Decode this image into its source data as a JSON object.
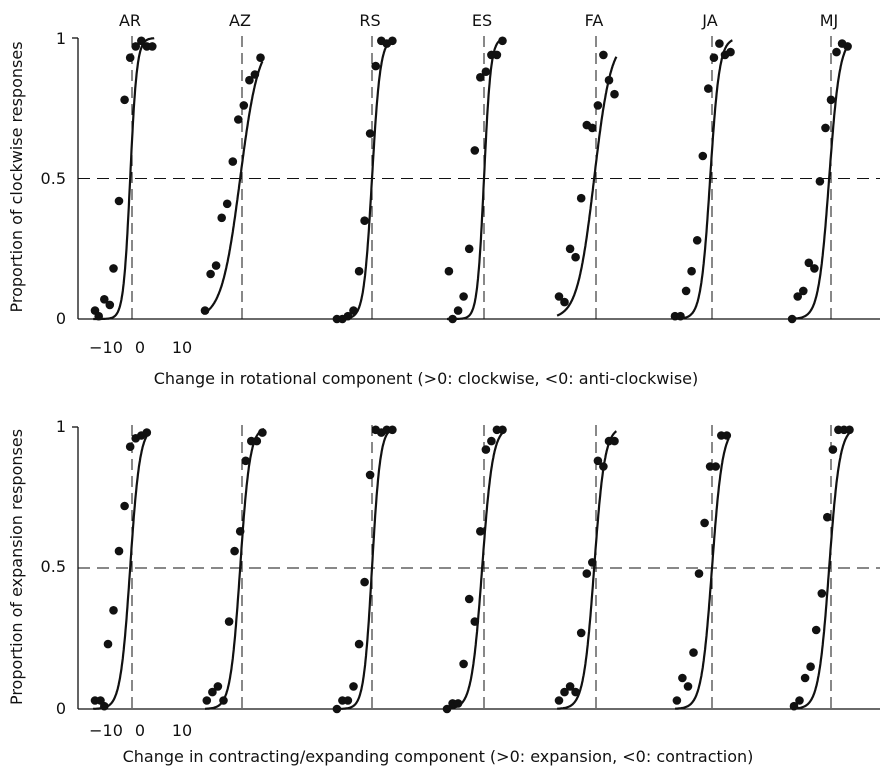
{
  "chart_data": [
    {
      "type": "scatter",
      "ylabel": "Proportion of clockwise responses",
      "xlabel": "Change in rotational component (>0: clockwise, <0: anti-clockwise)",
      "y_ticks": [
        "0",
        "0.5",
        "1"
      ],
      "x_ticks": [
        "−10",
        "0",
        "10"
      ],
      "ylim": [
        0,
        1
      ],
      "guideline_y": 0.5,
      "series": [
        {
          "name": "AR",
          "mu": -1,
          "slope": 0.55,
          "points": [
            [
              -20,
              0.03
            ],
            [
              -18,
              0.01
            ],
            [
              -15,
              0.07
            ],
            [
              -12,
              0.05
            ],
            [
              -10,
              0.18
            ],
            [
              -7,
              0.42
            ],
            [
              -4,
              0.78
            ],
            [
              -1,
              0.93
            ],
            [
              2,
              0.97
            ],
            [
              5,
              0.99
            ],
            [
              8,
              0.97
            ],
            [
              11,
              0.97
            ]
          ]
        },
        {
          "name": "AZ",
          "mu": -1,
          "slope": 0.2,
          "points": [
            [
              -20,
              0.03
            ],
            [
              -17,
              0.16
            ],
            [
              -14,
              0.19
            ],
            [
              -11,
              0.36
            ],
            [
              -8,
              0.41
            ],
            [
              -5,
              0.56
            ],
            [
              -2,
              0.71
            ],
            [
              1,
              0.76
            ],
            [
              4,
              0.85
            ],
            [
              7,
              0.87
            ],
            [
              10,
              0.93
            ]
          ]
        },
        {
          "name": "RS",
          "mu": 0,
          "slope": 0.45,
          "points": [
            [
              -19,
              0.0
            ],
            [
              -16,
              0.0
            ],
            [
              -13,
              0.01
            ],
            [
              -10,
              0.03
            ],
            [
              -7,
              0.17
            ],
            [
              -4,
              0.35
            ],
            [
              -1,
              0.66
            ],
            [
              2,
              0.9
            ],
            [
              5,
              0.99
            ],
            [
              8,
              0.98
            ],
            [
              11,
              0.99
            ]
          ]
        },
        {
          "name": "ES",
          "mu": 0,
          "slope": 0.55,
          "points": [
            [
              -19,
              0.17
            ],
            [
              -17,
              0.0
            ],
            [
              -14,
              0.03
            ],
            [
              -11,
              0.08
            ],
            [
              -8,
              0.25
            ],
            [
              -5,
              0.6
            ],
            [
              -2,
              0.86
            ],
            [
              1,
              0.88
            ],
            [
              4,
              0.94
            ],
            [
              7,
              0.94
            ],
            [
              10,
              0.99
            ]
          ]
        },
        {
          "name": "FA",
          "mu": -1,
          "slope": 0.22,
          "points": [
            [
              -20,
              0.08
            ],
            [
              -17,
              0.06
            ],
            [
              -14,
              0.25
            ],
            [
              -11,
              0.22
            ],
            [
              -8,
              0.43
            ],
            [
              -5,
              0.69
            ],
            [
              -2,
              0.68
            ],
            [
              1,
              0.76
            ],
            [
              4,
              0.94
            ],
            [
              7,
              0.85
            ],
            [
              10,
              0.8
            ]
          ]
        },
        {
          "name": "JA",
          "mu": -1,
          "slope": 0.4,
          "points": [
            [
              -20,
              0.01
            ],
            [
              -17,
              0.01
            ],
            [
              -14,
              0.1
            ],
            [
              -11,
              0.17
            ],
            [
              -8,
              0.28
            ],
            [
              -5,
              0.58
            ],
            [
              -2,
              0.82
            ],
            [
              1,
              0.93
            ],
            [
              4,
              0.98
            ],
            [
              7,
              0.94
            ],
            [
              10,
              0.95
            ]
          ]
        },
        {
          "name": "MJ",
          "mu": -1,
          "slope": 0.35,
          "points": [
            [
              -21,
              0.0
            ],
            [
              -18,
              0.08
            ],
            [
              -15,
              0.1
            ],
            [
              -12,
              0.2
            ],
            [
              -9,
              0.18
            ],
            [
              -6,
              0.49
            ],
            [
              -3,
              0.68
            ],
            [
              0,
              0.78
            ],
            [
              3,
              0.95
            ],
            [
              6,
              0.98
            ],
            [
              9,
              0.97
            ]
          ]
        }
      ]
    },
    {
      "type": "scatter",
      "ylabel": "Proportion of expansion responses",
      "xlabel": "Change in contracting/expanding component (>0: expansion, <0: contraction)",
      "y_ticks": [
        "0",
        "0.5",
        "1"
      ],
      "x_ticks": [
        "−10",
        "0",
        "10"
      ],
      "ylim": [
        0,
        1
      ],
      "guideline_y": 0.5,
      "series": [
        {
          "name": "AR",
          "mu": -1,
          "slope": 0.38,
          "points": [
            [
              -20,
              0.03
            ],
            [
              -17,
              0.03
            ],
            [
              -15,
              0.01
            ],
            [
              -13,
              0.23
            ],
            [
              -10,
              0.35
            ],
            [
              -7,
              0.56
            ],
            [
              -4,
              0.72
            ],
            [
              -1,
              0.93
            ],
            [
              2,
              0.96
            ],
            [
              5,
              0.97
            ],
            [
              8,
              0.98
            ]
          ]
        },
        {
          "name": "AZ",
          "mu": -1,
          "slope": 0.38,
          "points": [
            [
              -19,
              0.03
            ],
            [
              -16,
              0.06
            ],
            [
              -13,
              0.08
            ],
            [
              -10,
              0.03
            ],
            [
              -7,
              0.31
            ],
            [
              -4,
              0.56
            ],
            [
              -1,
              0.63
            ],
            [
              2,
              0.88
            ],
            [
              5,
              0.95
            ],
            [
              8,
              0.95
            ],
            [
              11,
              0.98
            ]
          ]
        },
        {
          "name": "RS",
          "mu": 0,
          "slope": 0.45,
          "points": [
            [
              -19,
              0.0
            ],
            [
              -16,
              0.03
            ],
            [
              -13,
              0.03
            ],
            [
              -10,
              0.08
            ],
            [
              -7,
              0.23
            ],
            [
              -4,
              0.45
            ],
            [
              -1,
              0.83
            ],
            [
              2,
              0.99
            ],
            [
              5,
              0.98
            ],
            [
              8,
              0.99
            ],
            [
              11,
              0.99
            ]
          ]
        },
        {
          "name": "ES",
          "mu": -1,
          "slope": 0.35,
          "points": [
            [
              -20,
              0.0
            ],
            [
              -17,
              0.02
            ],
            [
              -14,
              0.02
            ],
            [
              -11,
              0.16
            ],
            [
              -8,
              0.39
            ],
            [
              -5,
              0.31
            ],
            [
              -2,
              0.63
            ],
            [
              1,
              0.92
            ],
            [
              4,
              0.95
            ],
            [
              7,
              0.99
            ],
            [
              10,
              0.99
            ]
          ]
        },
        {
          "name": "FA",
          "mu": -1,
          "slope": 0.35,
          "points": [
            [
              -20,
              0.03
            ],
            [
              -17,
              0.06
            ],
            [
              -14,
              0.08
            ],
            [
              -11,
              0.06
            ],
            [
              -8,
              0.27
            ],
            [
              -5,
              0.48
            ],
            [
              -2,
              0.52
            ],
            [
              1,
              0.88
            ],
            [
              4,
              0.86
            ],
            [
              7,
              0.95
            ],
            [
              10,
              0.95
            ]
          ]
        },
        {
          "name": "JA",
          "mu": 0,
          "slope": 0.35,
          "points": [
            [
              -19,
              0.03
            ],
            [
              -16,
              0.11
            ],
            [
              -13,
              0.08
            ],
            [
              -10,
              0.2
            ],
            [
              -7,
              0.48
            ],
            [
              -4,
              0.66
            ],
            [
              -1,
              0.86
            ],
            [
              2,
              0.86
            ],
            [
              5,
              0.97
            ],
            [
              8,
              0.97
            ]
          ]
        },
        {
          "name": "MJ",
          "mu": -1,
          "slope": 0.35,
          "points": [
            [
              -20,
              0.01
            ],
            [
              -17,
              0.03
            ],
            [
              -14,
              0.11
            ],
            [
              -11,
              0.15
            ],
            [
              -8,
              0.28
            ],
            [
              -5,
              0.41
            ],
            [
              -2,
              0.68
            ],
            [
              1,
              0.92
            ],
            [
              4,
              0.99
            ],
            [
              7,
              0.99
            ],
            [
              10,
              0.99
            ]
          ]
        }
      ]
    }
  ]
}
